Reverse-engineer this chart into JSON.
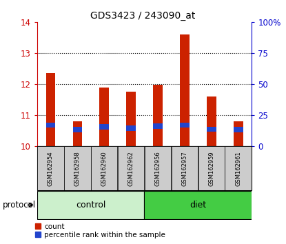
{
  "title": "GDS3423 / 243090_at",
  "samples": [
    "GSM162954",
    "GSM162958",
    "GSM162960",
    "GSM162962",
    "GSM162956",
    "GSM162957",
    "GSM162959",
    "GSM162961"
  ],
  "groups": [
    "control",
    "control",
    "control",
    "control",
    "diet",
    "diet",
    "diet",
    "diet"
  ],
  "count_values": [
    12.35,
    10.8,
    11.9,
    11.75,
    11.98,
    13.6,
    11.6,
    10.8
  ],
  "percentile_values": [
    10.6,
    10.45,
    10.55,
    10.5,
    10.57,
    10.6,
    10.47,
    10.45
  ],
  "percentile_bar_height": [
    0.17,
    0.17,
    0.17,
    0.17,
    0.17,
    0.17,
    0.17,
    0.17
  ],
  "ylim": [
    10.0,
    14.0
  ],
  "yticks_left": [
    10,
    11,
    12,
    13,
    14
  ],
  "yticks_right": [
    0,
    25,
    50,
    75,
    100
  ],
  "bar_width": 0.35,
  "bar_color": "#cc2200",
  "percentile_color": "#2244cc",
  "background_color": "#ffffff",
  "plot_bg": "#ffffff",
  "control_color": "#ccf0cc",
  "diet_color": "#44cc44",
  "label_bg_color": "#cccccc",
  "ylabel_left_color": "#cc0000",
  "ylabel_right_color": "#0000cc",
  "legend_red_label": "count",
  "legend_blue_label": "percentile rank within the sample",
  "protocol_label": "protocol",
  "grid_yticks": [
    11,
    12,
    13
  ]
}
